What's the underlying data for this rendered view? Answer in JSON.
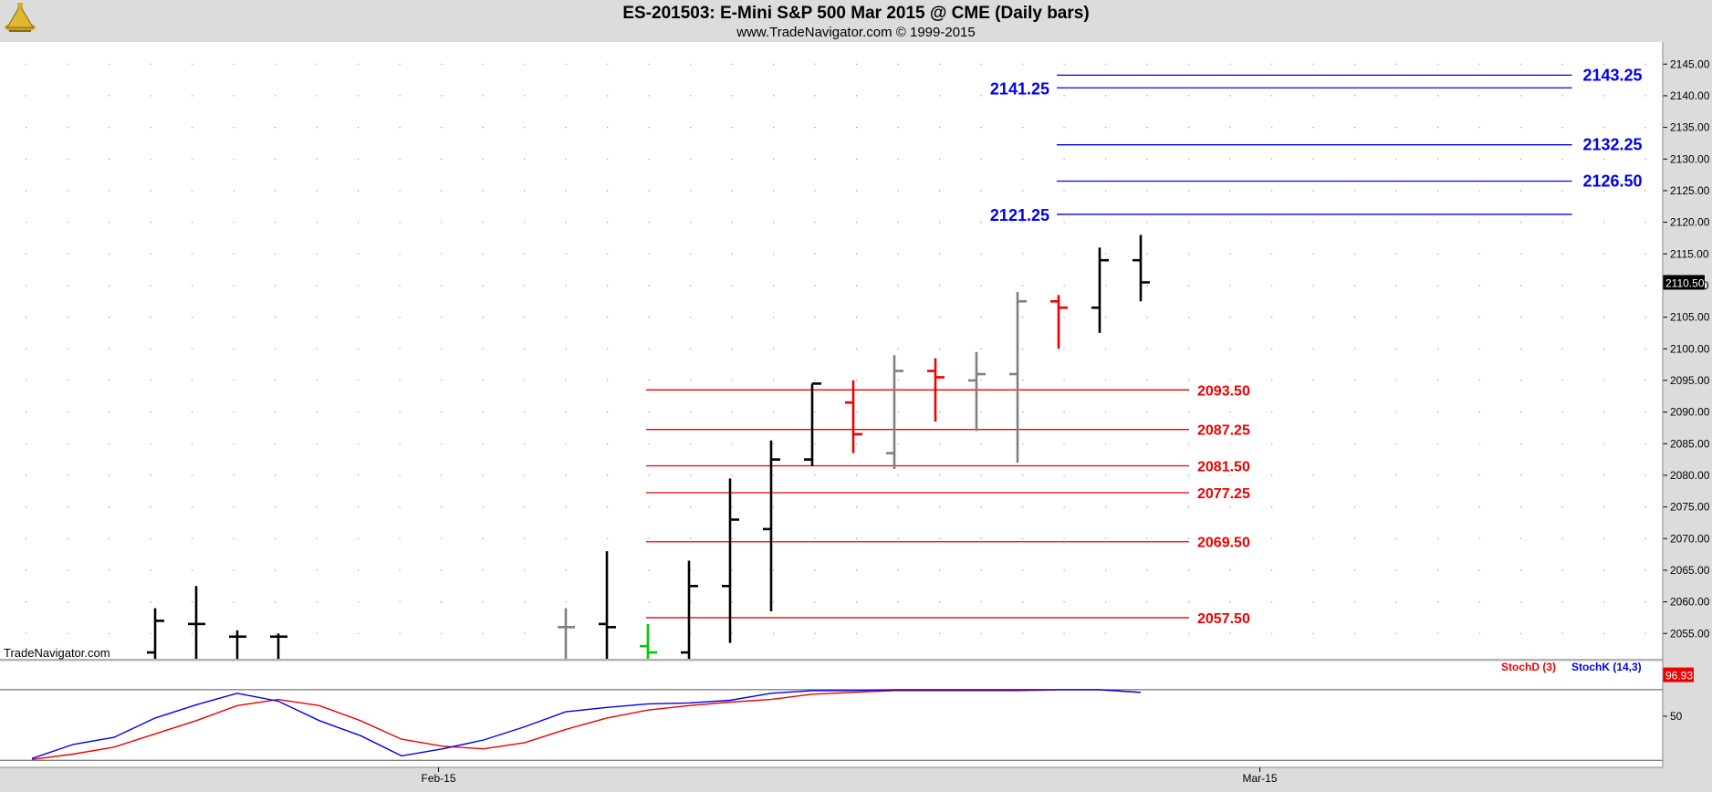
{
  "header": {
    "title": "ES-201503:  E-Mini S&P 500 Mar 2015 @ CME  (Daily bars)",
    "subtitle": "www.TradeNavigator.com © 1999-2015",
    "watermark": "TradeNavigator.com",
    "logo_icon": "trade-navigator-logo-icon"
  },
  "chart_data": {
    "type": "ohlc",
    "title": "ES-201503:  E-Mini S&P 500 Mar 2015 @ CME  (Daily bars)",
    "price_axis": {
      "ylim": [
        2051,
        2148.5
      ],
      "ticks": [
        "2145.00",
        "2140.00",
        "2135.00",
        "2130.00",
        "2125.00",
        "2120.00",
        "2115.00",
        "2110.00",
        "2105.00",
        "2100.00",
        "2095.00",
        "2090.00",
        "2085.00",
        "2080.00",
        "2075.00",
        "2070.00",
        "2065.00",
        "2060.00",
        "2055.00"
      ],
      "last_price_label": "2110.50",
      "last_price": 2110.5
    },
    "x_axis": {
      "labels": [
        {
          "text": "Feb-15",
          "x": 9.9
        },
        {
          "text": "Mar-15",
          "x": 29.9
        }
      ],
      "xlim": [
        -0.5,
        39.9
      ]
    },
    "bars": [
      {
        "x": 3,
        "open": 2052,
        "high": 2059,
        "low": 2050.5,
        "close": 2057,
        "color": "#000000"
      },
      {
        "x": 4,
        "open": 2056.5,
        "high": 2062.5,
        "low": 2050.5,
        "close": 2056.5,
        "color": "#000000"
      },
      {
        "x": 5,
        "open": 2054.5,
        "high": 2055.5,
        "low": 2050.5,
        "close": 2054.5,
        "color": "#000000"
      },
      {
        "x": 6,
        "open": 2054.5,
        "high": 2055,
        "low": 2050.5,
        "close": 2054.5,
        "color": "#000000"
      },
      {
        "x": 13,
        "open": 2056,
        "high": 2059,
        "low": 2050.5,
        "close": 2056,
        "color": "#808080"
      },
      {
        "x": 14,
        "open": 2056.5,
        "high": 2068,
        "low": 2050.5,
        "close": 2056,
        "color": "#000000"
      },
      {
        "x": 15,
        "open": 2053,
        "high": 2056.5,
        "low": 2050.5,
        "close": 2052,
        "color": "#00cc00"
      },
      {
        "x": 16,
        "open": 2052,
        "high": 2066.5,
        "low": 2050.5,
        "close": 2062.5,
        "color": "#000000"
      },
      {
        "x": 17,
        "open": 2062.5,
        "high": 2079.5,
        "low": 2053.5,
        "close": 2073,
        "color": "#000000"
      },
      {
        "x": 18,
        "open": 2071.5,
        "high": 2085.5,
        "low": 2058.5,
        "close": 2082.5,
        "color": "#000000"
      },
      {
        "x": 19,
        "open": 2082.5,
        "high": 2094.5,
        "low": 2081.5,
        "close": 2094.5,
        "color": "#000000"
      },
      {
        "x": 20,
        "open": 2091.5,
        "high": 2095,
        "low": 2083.5,
        "close": 2086.5,
        "color": "#ee0000"
      },
      {
        "x": 21,
        "open": 2083.5,
        "high": 2099,
        "low": 2081,
        "close": 2096.5,
        "color": "#808080"
      },
      {
        "x": 22,
        "open": 2096.5,
        "high": 2098.5,
        "low": 2088.5,
        "close": 2095.5,
        "color": "#ee0000"
      },
      {
        "x": 23,
        "open": 2095,
        "high": 2099.5,
        "low": 2087,
        "close": 2096,
        "color": "#808080"
      },
      {
        "x": 24,
        "open": 2096,
        "high": 2109,
        "low": 2082,
        "close": 2107.5,
        "color": "#808080"
      },
      {
        "x": 25,
        "open": 2107.5,
        "high": 2108.5,
        "low": 2100,
        "close": 2106.5,
        "color": "#ee0000"
      },
      {
        "x": 26,
        "open": 2106.5,
        "high": 2116,
        "low": 2102.5,
        "close": 2114,
        "color": "#000000"
      },
      {
        "x": 27,
        "open": 2114,
        "high": 2118,
        "low": 2107.5,
        "close": 2110.5,
        "color": "#000000"
      }
    ],
    "resistance_levels": [
      {
        "value": 2143.25,
        "label": "2143.25",
        "x0": 25,
        "x1": 37.5,
        "label_side": "right"
      },
      {
        "value": 2141.25,
        "label": "2141.25",
        "x0": 25,
        "x1": 37.5,
        "label_side": "left"
      },
      {
        "value": 2132.25,
        "label": "2132.25",
        "x0": 25,
        "x1": 37.5,
        "label_side": "right"
      },
      {
        "value": 2126.5,
        "label": "2126.50",
        "x0": 25,
        "x1": 37.5,
        "label_side": "right"
      },
      {
        "value": 2121.25,
        "label": "2121.25",
        "x0": 25,
        "x1": 37.5,
        "label_side": "left"
      }
    ],
    "support_levels": [
      {
        "value": 2093.5,
        "label": "2093.50",
        "x0": 15,
        "x1": 28.2
      },
      {
        "value": 2087.25,
        "label": "2087.25",
        "x0": 15,
        "x1": 28.2
      },
      {
        "value": 2081.5,
        "label": "2081.50",
        "x0": 15,
        "x1": 28.2
      },
      {
        "value": 2077.25,
        "label": "2077.25",
        "x0": 15,
        "x1": 28.2
      },
      {
        "value": 2069.5,
        "label": "2069.50",
        "x0": 15,
        "x1": 28.2
      },
      {
        "value": 2057.5,
        "label": "2057.50",
        "x0": 15,
        "x1": 28.2
      }
    ],
    "level_colors": {
      "resistance": "#0000ee",
      "support": "#ee0000"
    },
    "stochastic": {
      "ylim": [
        -8,
        112
      ],
      "tick_label": "50",
      "tick_value": 50,
      "last_value_label": "96.93",
      "last_value": 96.93,
      "reference_lines": [
        80,
        0
      ],
      "legend": [
        {
          "name": "StochD (3)",
          "color": "#ee0000"
        },
        {
          "name": "StochK (14,3)",
          "color": "#0000ee"
        }
      ],
      "x": [
        0,
        1,
        2,
        3,
        4,
        5,
        6,
        7,
        8,
        9,
        10,
        11,
        12,
        13,
        14,
        15,
        16,
        17,
        18,
        19,
        20,
        21,
        22,
        23,
        24,
        25,
        26,
        27
      ],
      "stoch_k": [
        2,
        18,
        26,
        48,
        63,
        76,
        67,
        45,
        28,
        5,
        13,
        23,
        38,
        55,
        60,
        64,
        65,
        68,
        76,
        79,
        79,
        80,
        80,
        80,
        80,
        80,
        80,
        77
      ],
      "stoch_d": [
        1,
        7,
        15,
        30,
        45,
        62,
        69,
        62,
        45,
        24,
        16,
        13,
        20,
        35,
        48,
        57,
        62,
        66,
        69,
        75,
        77,
        79,
        79,
        79,
        79,
        80,
        80,
        77
      ]
    }
  }
}
